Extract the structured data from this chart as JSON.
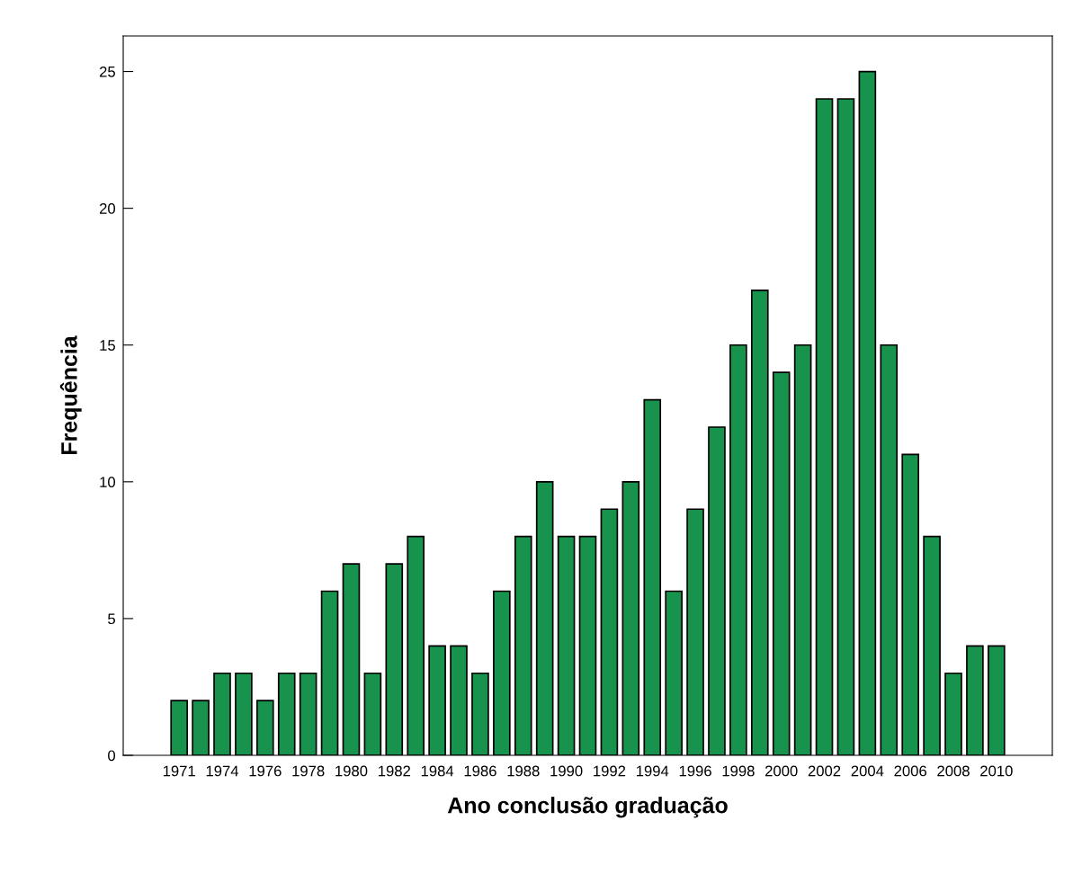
{
  "chart_data": {
    "type": "bar",
    "xlabel": "Ano conclusão graduação",
    "ylabel": "Frequência",
    "categories": [
      "1971",
      null,
      "1974",
      null,
      "1976",
      null,
      "1978",
      null,
      "1980",
      null,
      "1982",
      null,
      "1984",
      null,
      "1986",
      null,
      "1988",
      null,
      "1990",
      null,
      "1992",
      null,
      "1994",
      null,
      "1996",
      null,
      "1998",
      null,
      "2000",
      null,
      "2002",
      null,
      "2004",
      null,
      "2006",
      null,
      "2008",
      null,
      "2010"
    ],
    "values": [
      2,
      2,
      3,
      3,
      2,
      3,
      3,
      6,
      7,
      3,
      7,
      8,
      4,
      4,
      3,
      6,
      8,
      10,
      8,
      8,
      9,
      10,
      13,
      6,
      9,
      12,
      15,
      17,
      14,
      15,
      24,
      24,
      25,
      15,
      11,
      8,
      3,
      4,
      4
    ],
    "color": "#17934d",
    "ylim": [
      0,
      26.3
    ],
    "yticks": [
      0,
      5,
      10,
      15,
      20,
      25
    ],
    "grid": false
  }
}
